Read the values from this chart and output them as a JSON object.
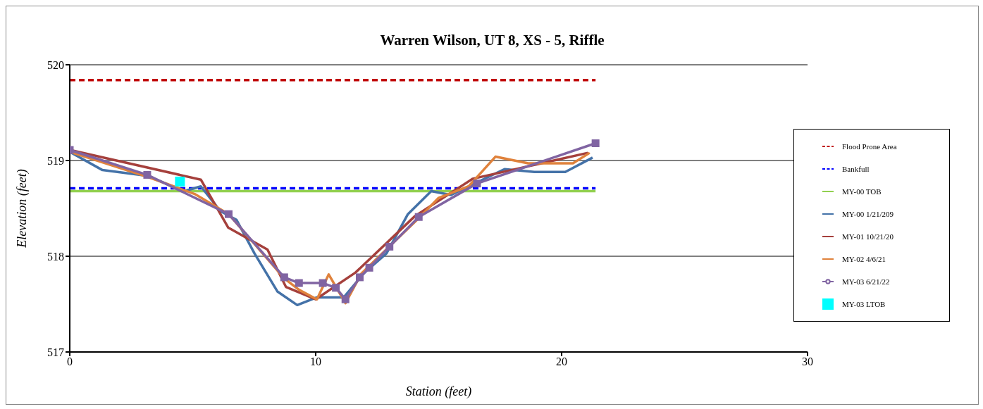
{
  "chart_data": {
    "type": "line",
    "title": "Warren Wilson, UT 8, XS - 5, Riffle",
    "xlabel": "Station (feet)",
    "ylabel": "Elevation (feet)",
    "xlim": [
      0,
      30
    ],
    "xticks": [
      0,
      10,
      20,
      30
    ],
    "ylim": [
      517,
      520
    ],
    "yticks": [
      517,
      518,
      519,
      520
    ],
    "grid": "y",
    "legend": "right",
    "series": [
      {
        "name": "Flood Prone Area",
        "color": "#c00000",
        "line_style": "dashed",
        "x": [
          0,
          21.38
        ],
        "values": [
          519.84,
          519.84
        ]
      },
      {
        "name": "Bankfull",
        "color": "#0000ff",
        "line_style": "dashed",
        "x": [
          0,
          21.38
        ],
        "values": [
          518.71,
          518.71
        ]
      },
      {
        "name": "MY-00 TOB",
        "color": "#92d050",
        "line_style": "solid",
        "x": [
          0,
          21.38
        ],
        "values": [
          518.68,
          518.68
        ]
      },
      {
        "name": "MY-00 1/21/209",
        "color": "#4472a8",
        "line_style": "solid",
        "x": [
          0,
          1.33,
          3.15,
          4.65,
          5.33,
          6.13,
          6.78,
          7.51,
          8.45,
          9.25,
          10.05,
          11.14,
          11.99,
          12.88,
          13.75,
          14.7,
          15.5,
          17.68,
          18.89,
          20.15,
          21.26
        ],
        "values": [
          519.09,
          518.9,
          518.84,
          518.68,
          518.73,
          518.47,
          518.38,
          518.03,
          517.63,
          517.49,
          517.57,
          517.57,
          517.83,
          518.03,
          518.44,
          518.68,
          518.64,
          518.91,
          518.88,
          518.88,
          519.03
        ]
      },
      {
        "name": "MY-01 10/21/20",
        "color": "#a5403c",
        "line_style": "solid",
        "x": [
          0,
          5.33,
          6.44,
          8.04,
          8.79,
          10.0,
          11.62,
          14.04,
          16.39,
          21.07
        ],
        "values": [
          519.11,
          518.8,
          518.3,
          518.07,
          517.68,
          517.55,
          517.83,
          518.42,
          518.81,
          519.08
        ]
      },
      {
        "name": "MY-02 4/6/21",
        "color": "#e0823c",
        "line_style": "solid",
        "x": [
          0,
          3.15,
          5.08,
          6.46,
          8.72,
          9.32,
          10.05,
          10.53,
          11.21,
          11.86,
          14.16,
          15.0,
          16.22,
          17.31,
          18.64,
          20.46,
          21.14
        ],
        "values": [
          519.09,
          518.83,
          518.65,
          518.44,
          517.77,
          517.65,
          517.55,
          517.81,
          517.51,
          517.82,
          518.39,
          518.61,
          518.73,
          519.04,
          518.97,
          518.97,
          519.08
        ]
      },
      {
        "name": "MY-03 6/21/22",
        "color": "#8064a2",
        "line_style": "solid",
        "marker": "square",
        "x": [
          0,
          3.15,
          6.46,
          8.72,
          9.32,
          10.29,
          10.82,
          11.21,
          11.79,
          12.18,
          13.0,
          14.19,
          16.56,
          21.38
        ],
        "values": [
          519.11,
          518.85,
          518.44,
          517.78,
          517.72,
          517.72,
          517.67,
          517.55,
          517.78,
          517.88,
          518.1,
          518.41,
          518.76,
          519.18
        ]
      },
      {
        "name": "MY-03 LTOB",
        "type": "scatter",
        "color": "#00ffff",
        "marker": "square",
        "x": [
          4.48
        ],
        "values": [
          518.78
        ]
      }
    ]
  }
}
